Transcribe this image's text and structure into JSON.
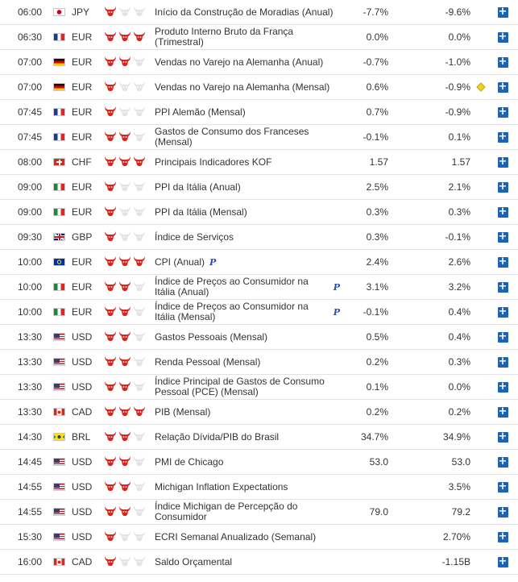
{
  "colors": {
    "bull_active": "#d9231b",
    "bull_inactive": "#e3e3e3",
    "add_button": "#1e62b4",
    "row_border": "#e2e2e2"
  },
  "rows": [
    {
      "time": "06:00",
      "flag": "jp-flag-icon",
      "currency": "JPY",
      "importance": 1,
      "event": "Início da Construção de Moradias (Anual)",
      "actual": "-7.7%",
      "forecast": "-9.6%",
      "prelim": false,
      "marker": false
    },
    {
      "time": "06:30",
      "flag": "fr-flag-icon",
      "currency": "EUR",
      "importance": 3,
      "event": "Produto Interno Bruto da França (Trimestral)",
      "actual": "0.0%",
      "forecast": "0.0%",
      "prelim": false,
      "marker": false
    },
    {
      "time": "07:00",
      "flag": "de-flag-icon",
      "currency": "EUR",
      "importance": 2,
      "event": "Vendas no Varejo na Alemanha (Anual)",
      "actual": "-0.7%",
      "forecast": "-1.0%",
      "prelim": false,
      "marker": false
    },
    {
      "time": "07:00",
      "flag": "de-flag-icon",
      "currency": "EUR",
      "importance": 1,
      "event": "Vendas no Varejo na Alemanha (Mensal)",
      "actual": "0.6%",
      "forecast": "-0.9%",
      "prelim": false,
      "marker": true
    },
    {
      "time": "07:45",
      "flag": "fr-flag-icon",
      "currency": "EUR",
      "importance": 1,
      "event": "PPI Alemão (Mensal)",
      "actual": "0.7%",
      "forecast": "-0.9%",
      "prelim": false,
      "marker": false
    },
    {
      "time": "07:45",
      "flag": "fr-flag-icon",
      "currency": "EUR",
      "importance": 2,
      "event": "Gastos de Consumo dos Franceses (Mensal)",
      "actual": "-0.1%",
      "forecast": "0.1%",
      "prelim": false,
      "marker": false
    },
    {
      "time": "08:00",
      "flag": "ch-flag-icon",
      "currency": "CHF",
      "importance": 3,
      "event": "Principais Indicadores KOF",
      "actual": "1.57",
      "forecast": "1.57",
      "prelim": false,
      "marker": false
    },
    {
      "time": "09:00",
      "flag": "it-flag-icon",
      "currency": "EUR",
      "importance": 1,
      "event": "PPI da Itália (Anual)",
      "actual": "2.5%",
      "forecast": "2.1%",
      "prelim": false,
      "marker": false
    },
    {
      "time": "09:00",
      "flag": "it-flag-icon",
      "currency": "EUR",
      "importance": 1,
      "event": "PPI da Itália (Mensal)",
      "actual": "0.3%",
      "forecast": "0.3%",
      "prelim": false,
      "marker": false
    },
    {
      "time": "09:30",
      "flag": "gb-flag-icon",
      "currency": "GBP",
      "importance": 1,
      "event": "Índice de Serviços",
      "actual": "0.3%",
      "forecast": "-0.1%",
      "prelim": false,
      "marker": false
    },
    {
      "time": "10:00",
      "flag": "eu-flag-icon",
      "currency": "EUR",
      "importance": 3,
      "event": "CPI (Anual)",
      "actual": "2.4%",
      "forecast": "2.6%",
      "prelim": true,
      "marker": false
    },
    {
      "time": "10:00",
      "flag": "it-flag-icon",
      "currency": "EUR",
      "importance": 2,
      "event": "Índice de Preços ao Consumidor na Itália (Anual)",
      "actual": "3.1%",
      "forecast": "3.2%",
      "prelim": true,
      "marker": false
    },
    {
      "time": "10:00",
      "flag": "it-flag-icon",
      "currency": "EUR",
      "importance": 2,
      "event": "Índice de Preços ao Consumidor na Itália (Mensal)",
      "actual": "-0.1%",
      "forecast": "0.4%",
      "prelim": true,
      "marker": false
    },
    {
      "time": "13:30",
      "flag": "us-flag-icon",
      "currency": "USD",
      "importance": 2,
      "event": "Gastos Pessoais (Mensal)",
      "actual": "0.5%",
      "forecast": "0.4%",
      "prelim": false,
      "marker": false
    },
    {
      "time": "13:30",
      "flag": "us-flag-icon",
      "currency": "USD",
      "importance": 2,
      "event": "Renda Pessoal (Mensal)",
      "actual": "0.2%",
      "forecast": "0.3%",
      "prelim": false,
      "marker": false
    },
    {
      "time": "13:30",
      "flag": "us-flag-icon",
      "currency": "USD",
      "importance": 2,
      "event": "Índice Principal de Gastos de Consumo Pessoal (PCE) (Mensal)",
      "actual": "0.1%",
      "forecast": "0.0%",
      "prelim": false,
      "marker": false
    },
    {
      "time": "13:30",
      "flag": "ca-flag-icon",
      "currency": "CAD",
      "importance": 3,
      "event": "PIB (Mensal)",
      "actual": "0.2%",
      "forecast": "0.2%",
      "prelim": false,
      "marker": false
    },
    {
      "time": "14:30",
      "flag": "br-flag-icon",
      "currency": "BRL",
      "importance": 2,
      "event": "Relação Dívida/PIB do Brasil",
      "actual": "34.7%",
      "forecast": "34.9%",
      "prelim": false,
      "marker": false
    },
    {
      "time": "14:45",
      "flag": "us-flag-icon",
      "currency": "USD",
      "importance": 2,
      "event": "PMI de Chicago",
      "actual": "53.0",
      "forecast": "53.0",
      "prelim": false,
      "marker": false
    },
    {
      "time": "14:55",
      "flag": "us-flag-icon",
      "currency": "USD",
      "importance": 2,
      "event": "Michigan Inflation Expectations",
      "actual": "",
      "forecast": "3.5%",
      "prelim": false,
      "marker": false
    },
    {
      "time": "14:55",
      "flag": "us-flag-icon",
      "currency": "USD",
      "importance": 2,
      "event": "Índice Michigan de Percepção do Consumidor",
      "actual": "79.0",
      "forecast": "79.2",
      "prelim": false,
      "marker": false
    },
    {
      "time": "15:30",
      "flag": "us-flag-icon",
      "currency": "USD",
      "importance": 1,
      "event": "ECRI Semanal Anualizado (Semanal)",
      "actual": "",
      "forecast": "2.70%",
      "prelim": false,
      "marker": false
    },
    {
      "time": "16:00",
      "flag": "ca-flag-icon",
      "currency": "CAD",
      "importance": 1,
      "event": "Saldo Orçamental",
      "actual": "",
      "forecast": "-1.15B",
      "prelim": false,
      "marker": false
    }
  ],
  "labels": {
    "prelim": "P",
    "add": "+"
  }
}
